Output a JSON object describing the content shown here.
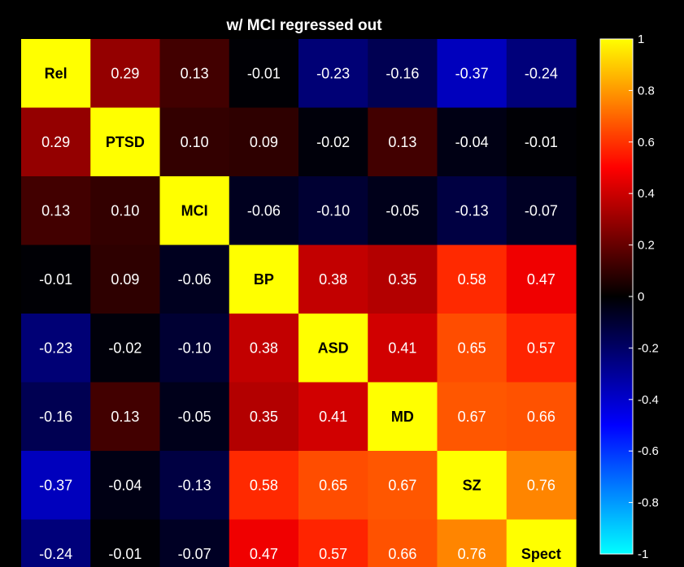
{
  "chart_data": {
    "type": "heatmap",
    "title": "w/ MCI regressed out",
    "labels": [
      "Rel",
      "PTSD",
      "MCI",
      "BP",
      "ASD",
      "MD",
      "SZ",
      "Spect"
    ],
    "matrix": [
      [
        1,
        0.29,
        0.13,
        -0.01,
        -0.23,
        -0.16,
        -0.37,
        -0.24
      ],
      [
        0.29,
        1,
        0.1,
        0.09,
        -0.02,
        0.13,
        -0.04,
        -0.01
      ],
      [
        0.13,
        0.1,
        1,
        -0.06,
        -0.1,
        -0.05,
        -0.13,
        -0.07
      ],
      [
        -0.01,
        0.09,
        -0.06,
        1,
        0.38,
        0.35,
        0.58,
        0.47
      ],
      [
        -0.23,
        -0.02,
        -0.1,
        0.38,
        1,
        0.41,
        0.65,
        0.57
      ],
      [
        -0.16,
        0.13,
        -0.05,
        0.35,
        0.41,
        1,
        0.67,
        0.66
      ],
      [
        -0.37,
        -0.04,
        -0.13,
        0.58,
        0.65,
        0.67,
        1,
        0.76
      ],
      [
        -0.24,
        -0.01,
        -0.07,
        0.47,
        0.57,
        0.66,
        0.76,
        1
      ]
    ],
    "value_labels": [
      [
        "",
        "0.29",
        "0.13",
        "-0.01",
        "-0.23",
        "-0.16",
        "-0.37",
        "-0.24"
      ],
      [
        "0.29",
        "",
        "0.10",
        "0.09",
        "-0.02",
        "0.13",
        "-0.04",
        "-0.01"
      ],
      [
        "0.13",
        "0.10",
        "",
        "-0.06",
        "-0.10",
        "-0.05",
        "-0.13",
        "-0.07"
      ],
      [
        "-0.01",
        "0.09",
        "-0.06",
        "",
        "0.38",
        "0.35",
        "0.58",
        "0.47"
      ],
      [
        "-0.23",
        "-0.02",
        "-0.10",
        "0.38",
        "",
        "0.41",
        "0.65",
        "0.57"
      ],
      [
        "-0.16",
        "0.13",
        "-0.05",
        "0.35",
        "0.41",
        "",
        "0.67",
        "0.66"
      ],
      [
        "-0.37",
        "-0.04",
        "-0.13",
        "0.58",
        "0.65",
        "0.67",
        "",
        "0.76"
      ],
      [
        "-0.24",
        "-0.01",
        "-0.07",
        "0.47",
        "0.57",
        "0.66",
        "0.76",
        ""
      ]
    ],
    "colorbar": {
      "range": [
        -1,
        1
      ],
      "ticks": [
        -1,
        -0.8,
        -0.6,
        -0.4,
        -0.2,
        0,
        0.2,
        0.4,
        0.6,
        0.8,
        1
      ],
      "tick_labels": [
        "-1",
        "-0.8",
        "-0.6",
        "-0.4",
        "-0.2",
        "0",
        "0.2",
        "0.4",
        "0.6",
        "0.8",
        "1"
      ],
      "colormap": "cyan-blue-black-red-yellow"
    },
    "colors": {
      "background": "#000000",
      "cmap_min": "#00ffff",
      "cmap_neg": "#0000ff",
      "cmap_zero": "#000000",
      "cmap_pos": "#ff0000",
      "cmap_max": "#ffff00"
    }
  }
}
